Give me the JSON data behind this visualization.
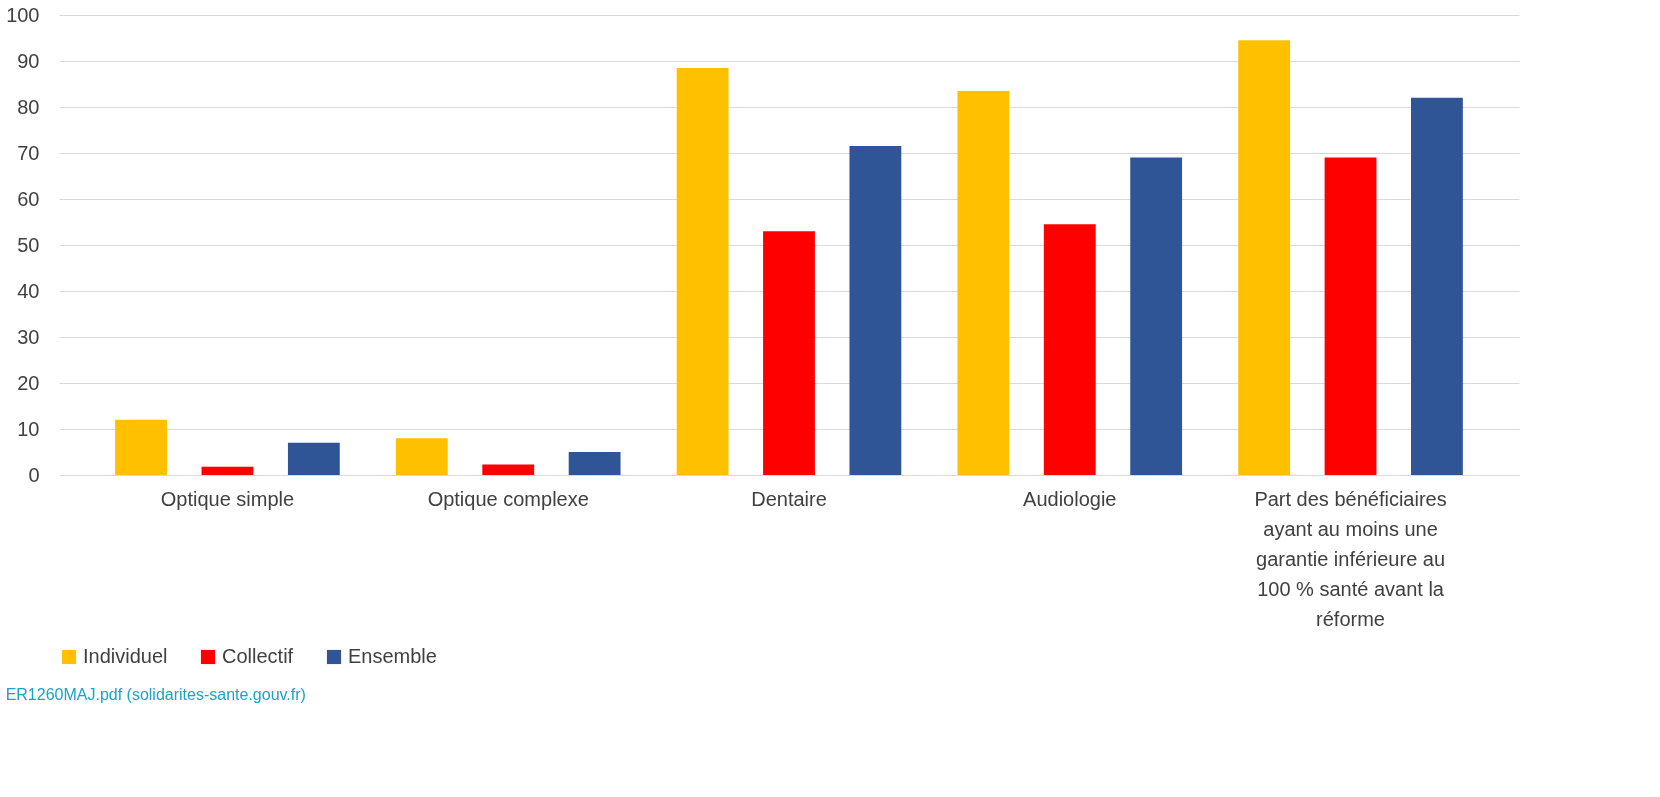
{
  "chart_data": {
    "type": "bar",
    "categories": [
      "Optique simple",
      "Optique complexe",
      "Dentaire",
      "Audiologie",
      "Part des bénéficiaires ayant au moins une garantie inférieure au 100 % santé avant la réforme"
    ],
    "series": [
      {
        "name": "Individuel",
        "color": "#ffc000",
        "values": [
          12,
          8,
          88.5,
          83.5,
          94.5
        ]
      },
      {
        "name": "Collectif",
        "color": "#ff0000",
        "values": [
          1.8,
          2.3,
          53,
          54.5,
          69
        ]
      },
      {
        "name": "Ensemble",
        "color": "#2f5597",
        "values": [
          7,
          5,
          71.5,
          69,
          82
        ]
      }
    ],
    "ylim": [
      0,
      100
    ],
    "yticks": [
      0,
      10,
      20,
      30,
      40,
      50,
      60,
      70,
      80,
      90,
      100
    ],
    "grid": "y",
    "legend": "bottom",
    "annotations": [
      "ER1260MAJ.pdf (solidarites-sante.gouv.fr)"
    ]
  }
}
